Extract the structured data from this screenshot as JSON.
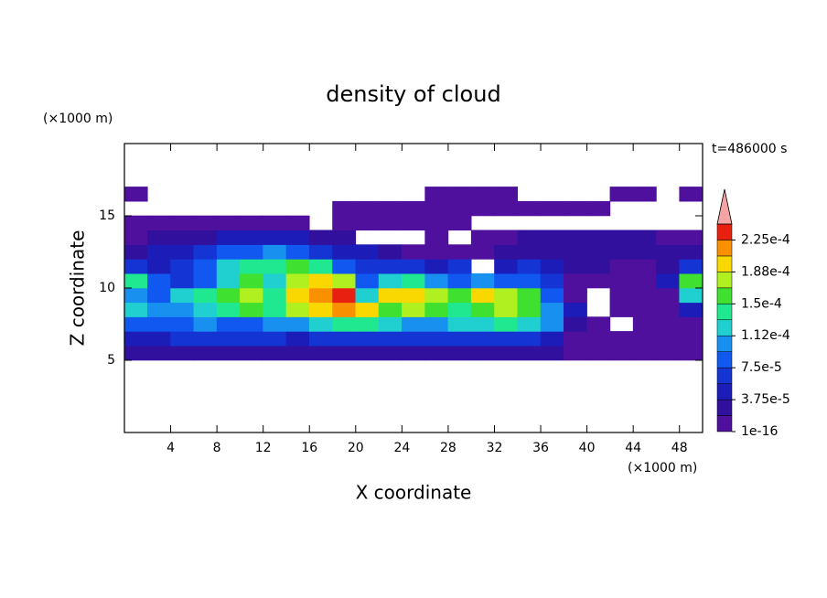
{
  "chart_data": {
    "type": "contour",
    "title": "density of cloud",
    "xlabel": "X coordinate",
    "ylabel": "Z coordinate",
    "x_unit": "(×1000 m)",
    "y_unit": "(×1000 m)",
    "annotation": "t=486000 s",
    "xlim": [
      0,
      50
    ],
    "ylim": [
      0,
      20
    ],
    "xticks": [
      4,
      8,
      12,
      16,
      20,
      24,
      28,
      32,
      36,
      40,
      44,
      48
    ],
    "yticks": [
      5,
      10,
      15
    ],
    "clim": [
      1e-16,
      0.00024375
    ],
    "cticks": [
      {
        "value": 1e-16,
        "label": "1e-16"
      },
      {
        "value": 3.75e-05,
        "label": "3.75e-5"
      },
      {
        "value": 7.5e-05,
        "label": "7.5e-5"
      },
      {
        "value": 0.0001125,
        "label": "1.12e-4"
      },
      {
        "value": 0.00015,
        "label": "1.5e-4"
      },
      {
        "value": 0.0001875,
        "label": "1.88e-4"
      },
      {
        "value": 0.000225,
        "label": "2.25e-4"
      }
    ],
    "colors": [
      "#50109e",
      "#30109c",
      "#1c1cb8",
      "#1434d4",
      "#1058f0",
      "#1890f0",
      "#20d0d0",
      "#20e890",
      "#40e030",
      "#b0f020",
      "#f8d800",
      "#f89000",
      "#e82010"
    ],
    "extend": "max",
    "over_color": "#f4a4a4",
    "x": [
      1,
      3,
      5,
      7,
      9,
      11,
      13,
      15,
      17,
      19,
      21,
      23,
      25,
      27,
      29,
      31,
      33,
      35,
      37,
      39,
      41,
      43,
      45,
      47,
      49
    ],
    "y": [
      5.5,
      6.5,
      7.5,
      8.5,
      9.5,
      10.5,
      11.5,
      12.5,
      13.5,
      14.5,
      15.5,
      16.5
    ],
    "z": [
      [
        3e-05,
        3e-05,
        3e-05,
        3e-05,
        3e-05,
        3e-05,
        3e-05,
        3e-05,
        3e-05,
        3e-05,
        3e-05,
        3e-05,
        3e-05,
        3e-05,
        3e-05,
        3e-05,
        3e-05,
        3e-05,
        3e-05,
        1e-05,
        1e-05,
        1e-05,
        1e-05,
        1e-05,
        1e-05
      ],
      [
        5e-05,
        5e-05,
        7e-05,
        7e-05,
        7e-05,
        7e-05,
        7e-05,
        5e-05,
        7e-05,
        7e-05,
        7e-05,
        7e-05,
        7e-05,
        7e-05,
        7e-05,
        7e-05,
        7e-05,
        7e-05,
        5e-05,
        1e-05,
        1e-05,
        1e-05,
        1e-05,
        1e-05,
        1e-05
      ],
      [
        9e-05,
        9e-05,
        9e-05,
        0.00011,
        9e-05,
        9e-05,
        0.00011,
        0.00011,
        0.00013,
        0.000145,
        0.000145,
        0.00013,
        0.00011,
        0.00011,
        0.00013,
        0.00013,
        0.000145,
        0.00013,
        0.00011,
        3e-05,
        1e-05,
        null,
        1e-05,
        1e-05,
        1e-05
      ],
      [
        0.00013,
        0.00011,
        0.00011,
        0.00013,
        0.000145,
        0.00016,
        0.000145,
        0.00018,
        0.0002,
        0.00022,
        0.0002,
        0.00016,
        0.00018,
        0.00016,
        0.000145,
        0.00016,
        0.00018,
        0.00016,
        0.00011,
        5e-05,
        null,
        1e-05,
        1e-05,
        1e-05,
        5e-05
      ],
      [
        0.00011,
        9e-05,
        0.00013,
        0.000145,
        0.00016,
        0.00018,
        0.000145,
        0.0002,
        0.00022,
        0.00024,
        0.00013,
        0.0002,
        0.0002,
        0.00018,
        0.00016,
        0.0002,
        0.00018,
        0.00016,
        9e-05,
        1e-05,
        null,
        1e-05,
        1e-05,
        1e-05,
        0.00013
      ],
      [
        0.000145,
        9e-05,
        7e-05,
        9e-05,
        0.00013,
        0.00016,
        0.00013,
        0.00018,
        0.0002,
        0.00018,
        9e-05,
        0.00013,
        0.000145,
        0.00011,
        9e-05,
        0.00011,
        9e-05,
        9e-05,
        7e-05,
        1e-05,
        1e-05,
        1e-05,
        1e-05,
        5e-05,
        0.00016
      ],
      [
        7e-05,
        5e-05,
        7e-05,
        9e-05,
        0.00013,
        0.000145,
        0.000145,
        0.00016,
        0.000145,
        9e-05,
        7e-05,
        7e-05,
        7e-05,
        5e-05,
        7e-05,
        null,
        5e-05,
        7e-05,
        5e-05,
        3e-05,
        3e-05,
        1e-05,
        1e-05,
        3e-05,
        7e-05
      ],
      [
        3e-05,
        5e-05,
        5e-05,
        7e-05,
        9e-05,
        9e-05,
        0.00011,
        9e-05,
        7e-05,
        5e-05,
        5e-05,
        3e-05,
        1e-05,
        1e-05,
        1e-05,
        1e-05,
        3e-05,
        3e-05,
        3e-05,
        3e-05,
        3e-05,
        3e-05,
        3e-05,
        3e-05,
        3e-05
      ],
      [
        1e-05,
        3e-05,
        3e-05,
        3e-05,
        5e-05,
        5e-05,
        5e-05,
        5e-05,
        3e-05,
        3e-05,
        null,
        null,
        null,
        1e-05,
        null,
        1e-05,
        1e-05,
        3e-05,
        3e-05,
        3e-05,
        3e-05,
        3e-05,
        3e-05,
        1e-05,
        1e-05
      ],
      [
        1e-05,
        1e-05,
        1e-05,
        1e-05,
        1e-05,
        1e-05,
        1e-05,
        1e-05,
        null,
        1e-05,
        1e-05,
        1e-05,
        1e-05,
        1e-05,
        1e-05,
        null,
        null,
        null,
        null,
        null,
        null,
        null,
        null,
        null,
        null
      ],
      [
        null,
        null,
        null,
        null,
        null,
        null,
        null,
        null,
        null,
        1e-05,
        1e-05,
        1e-05,
        1e-05,
        1e-05,
        1e-05,
        1e-05,
        1e-05,
        1e-05,
        1e-05,
        1e-05,
        1e-05,
        null,
        null,
        null,
        null
      ],
      [
        1e-05,
        null,
        null,
        null,
        null,
        null,
        null,
        null,
        null,
        null,
        null,
        null,
        null,
        1e-05,
        1e-05,
        1e-05,
        1e-05,
        null,
        null,
        null,
        null,
        1e-05,
        1e-05,
        null,
        1e-05
      ]
    ]
  }
}
